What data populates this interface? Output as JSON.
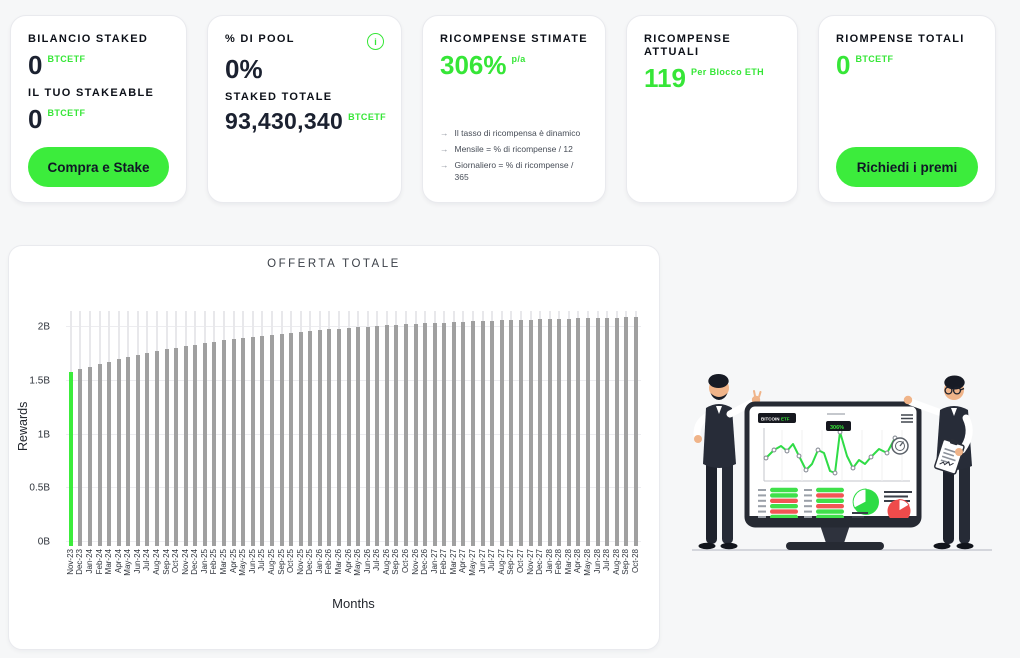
{
  "colors": {
    "accent_green": "#36e637",
    "button_green": "#3cec3c",
    "bar_gray": "#a0a0a0",
    "text_dark": "#10151f"
  },
  "cards": {
    "balance": {
      "title": "BILANCIO STAKED",
      "value": "0",
      "unit": "BTCETF",
      "subtitle": "IL TUO STAKEABLE",
      "subvalue": "0",
      "subunit": "BTCETF",
      "button": "Compra e Stake"
    },
    "pool": {
      "title": "% DI POOL",
      "info_glyph": "i",
      "value": "0%",
      "subtitle": "STAKED TOTALE",
      "subvalue": "93,430,340",
      "subunit": "BTCETF"
    },
    "estimated": {
      "title": "RICOMPENSE STIMATE",
      "value": "306%",
      "unit": "p/a",
      "arrow": "→",
      "notes": [
        "Il tasso di ricompensa è dinamico",
        "Mensile = % di ricompense / 12",
        "Giornaliero = % di ricompense / 365"
      ]
    },
    "current": {
      "title": "RICOMPENSE ATTUALI",
      "value": "119",
      "unit": "Per Blocco ETH"
    },
    "total": {
      "title": "RIOMPENSE TOTALI",
      "value": "0",
      "unit": "BTCETF",
      "button": "Richiedi i premi"
    }
  },
  "chart_data": {
    "type": "bar",
    "title": "OFFERTA TOTALE",
    "xlabel": "Months",
    "ylabel": "Rewards",
    "unit": "B",
    "ylim": [
      0,
      2.15
    ],
    "yticks": [
      "0B",
      "0.5B",
      "1B",
      "1.5B",
      "2B"
    ],
    "ytick_values": [
      0,
      0.5,
      1,
      1.5,
      2
    ],
    "grid": true,
    "legend": "none",
    "bar_color": "#a0a0a0",
    "highlight_index": 0,
    "highlight_color": "#3cec3c",
    "categories": [
      "Nov-23",
      "Dec-23",
      "Jan-24",
      "Feb-24",
      "Mar-24",
      "Apr-24",
      "May-24",
      "Jun-24",
      "Jul-24",
      "Aug-24",
      "Sep-24",
      "Oct-24",
      "Nov-24",
      "Dec-24",
      "Jan-25",
      "Feb-25",
      "Mar-25",
      "Apr-25",
      "May-25",
      "Jun-25",
      "Jul-25",
      "Aug-25",
      "Sep-25",
      "Oct-25",
      "Nov-25",
      "Dec-25",
      "Jan-26",
      "Feb-26",
      "Mar-26",
      "Apr-26",
      "May-26",
      "Jun-26",
      "Jul-26",
      "Aug-26",
      "Sep-26",
      "Oct-26",
      "Nov-26",
      "Dec-26",
      "Jan-27",
      "Feb-27",
      "Mar-27",
      "Apr-27",
      "May-27",
      "Jun-27",
      "Jul-27",
      "Aug-27",
      "Sep-27",
      "Oct-27",
      "Nov-27",
      "Dec-27",
      "Jan-28",
      "Feb-28",
      "Mar-28",
      "Apr-28",
      "May-28",
      "Jun-28",
      "Jul-28",
      "Aug-28",
      "Sep-28",
      "Oct-28"
    ],
    "values": [
      1.58,
      1.606,
      1.631,
      1.655,
      1.678,
      1.699,
      1.72,
      1.74,
      1.758,
      1.776,
      1.792,
      1.808,
      1.824,
      1.838,
      1.852,
      1.865,
      1.877,
      1.889,
      1.9,
      1.911,
      1.921,
      1.931,
      1.94,
      1.949,
      1.957,
      1.965,
      1.973,
      1.98,
      1.987,
      1.993,
      2.0,
      2.005,
      2.011,
      2.016,
      2.021,
      2.026,
      2.031,
      2.035,
      2.039,
      2.043,
      2.047,
      2.051,
      2.054,
      2.057,
      2.06,
      2.063,
      2.066,
      2.068,
      2.071,
      2.073,
      2.076,
      2.078,
      2.08,
      2.082,
      2.084,
      2.085,
      2.087,
      2.089,
      2.09,
      2.092
    ]
  },
  "illustration": {
    "logo_dark": "BITCOIN",
    "logo_green": "ETF",
    "badge": "306%"
  }
}
